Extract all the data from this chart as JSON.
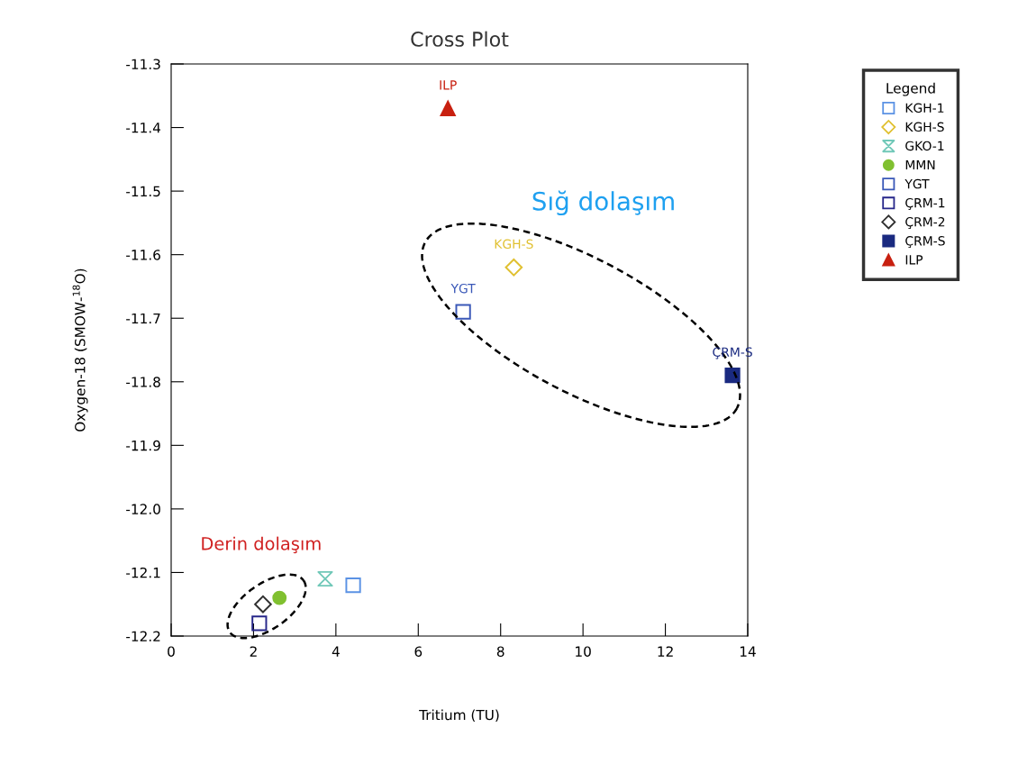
{
  "chart_data": {
    "type": "scatter",
    "title": "Cross Plot",
    "xlabel": "Tritium (TU)",
    "ylabel": "Oxygen-18 (SMOW-$^{18}$O)",
    "legend_title": "Legend",
    "legend": "right",
    "grid": false,
    "xlim": [
      0,
      14
    ],
    "xticks": [
      0,
      2,
      4,
      6,
      8,
      10,
      12,
      14
    ],
    "ylim": [
      -12.2,
      -11.3
    ],
    "yticks": [
      -12.2,
      -12.1,
      {
        "value": -12.0,
        "label": "-12.0"
      },
      -11.9,
      -11.8,
      -11.7,
      -11.6,
      -11.5,
      -11.4,
      -11.3
    ],
    "annotations": [
      "Sığ dolaşım",
      "Derin dolaşım"
    ],
    "series": [
      {
        "name": "KGH-1",
        "color": "#5b92e4",
        "marker": "square",
        "x": [
          4.42
        ],
        "values": [
          -12.12
        ]
      },
      {
        "name": "KGH-S",
        "color": "#e0c030",
        "marker": "diamond",
        "x": [
          8.32
        ],
        "values": [
          -11.62
        ],
        "value_labels": [
          "KGH-S"
        ]
      },
      {
        "name": "GKO-1",
        "color": "#70c8b8",
        "x": [
          3.74
        ],
        "values": [
          -12.11
        ]
      },
      {
        "name": "MMN",
        "color": "#80c030",
        "marker": "circle",
        "x": [
          2.63
        ],
        "values": [
          -12.14
        ]
      },
      {
        "name": "YGT",
        "color": "#3a58b8",
        "marker": "square",
        "x": [
          7.09
        ],
        "values": [
          -11.69
        ],
        "value_labels": [
          "YGT"
        ]
      },
      {
        "name": "ÇRM-1",
        "color": "#27278a",
        "marker": "square",
        "x": [
          2.14
        ],
        "values": [
          -12.18
        ]
      },
      {
        "name": "ÇRM-2",
        "color": "#303030",
        "marker": "diamond",
        "x": [
          2.23
        ],
        "values": [
          -12.15
        ]
      },
      {
        "name": "ÇRM-S",
        "color": "#1a2a80",
        "marker": "square",
        "x": [
          13.63
        ],
        "values": [
          -11.79
        ],
        "value_labels": [
          "ÇRM-S"
        ]
      },
      {
        "name": "ILP",
        "color": "#c82010",
        "marker": "triangle",
        "x": [
          6.72
        ],
        "values": [
          -11.37
        ],
        "value_labels": [
          "ILP"
        ]
      }
    ]
  }
}
